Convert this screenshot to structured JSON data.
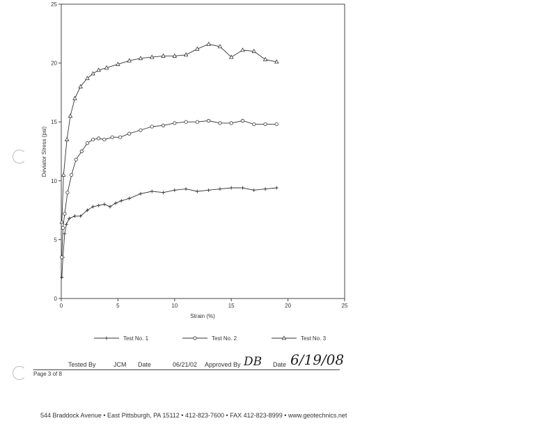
{
  "chart_data": {
    "type": "line",
    "xlabel": "Strain (%)",
    "ylabel": "Deviator Stress (psi)",
    "xlim": [
      0,
      25
    ],
    "ylim": [
      0,
      25
    ],
    "xticks": [
      "0",
      "5",
      "10",
      "15",
      "20",
      "25"
    ],
    "yticks": [
      "0",
      "5",
      "10",
      "15",
      "20",
      "25"
    ],
    "grid": false,
    "legend_position": "bottom",
    "series": [
      {
        "name": "Test No. 1",
        "marker": "plus",
        "points": [
          [
            0.05,
            1.8
          ],
          [
            0.15,
            3.5
          ],
          [
            0.3,
            5.5
          ],
          [
            0.45,
            6.3
          ],
          [
            0.7,
            6.8
          ],
          [
            1.2,
            7.0
          ],
          [
            1.7,
            7.0
          ],
          [
            2.3,
            7.5
          ],
          [
            2.8,
            7.8
          ],
          [
            3.3,
            7.9
          ],
          [
            3.8,
            8.0
          ],
          [
            4.3,
            7.8
          ],
          [
            4.8,
            8.1
          ],
          [
            5.3,
            8.3
          ],
          [
            6,
            8.5
          ],
          [
            7,
            8.9
          ],
          [
            8,
            9.1
          ],
          [
            9,
            9.0
          ],
          [
            10,
            9.2
          ],
          [
            11,
            9.3
          ],
          [
            12,
            9.1
          ],
          [
            13,
            9.2
          ],
          [
            14,
            9.3
          ],
          [
            15,
            9.4
          ],
          [
            16,
            9.4
          ],
          [
            17,
            9.2
          ],
          [
            18,
            9.3
          ],
          [
            19,
            9.4
          ]
        ]
      },
      {
        "name": "Test No. 2",
        "marker": "circle",
        "points": [
          [
            0.05,
            3.5
          ],
          [
            0.15,
            6.0
          ],
          [
            0.3,
            7.2
          ],
          [
            0.55,
            9.0
          ],
          [
            0.9,
            10.5
          ],
          [
            1.3,
            11.8
          ],
          [
            1.8,
            12.5
          ],
          [
            2.3,
            13.2
          ],
          [
            2.8,
            13.5
          ],
          [
            3.3,
            13.6
          ],
          [
            3.8,
            13.5
          ],
          [
            4.5,
            13.7
          ],
          [
            5.2,
            13.7
          ],
          [
            6,
            14.0
          ],
          [
            7,
            14.3
          ],
          [
            8,
            14.6
          ],
          [
            9,
            14.7
          ],
          [
            10,
            14.9
          ],
          [
            11,
            15.0
          ],
          [
            12,
            15.0
          ],
          [
            13,
            15.1
          ],
          [
            14,
            14.9
          ],
          [
            15,
            14.9
          ],
          [
            16,
            15.1
          ],
          [
            17,
            14.8
          ],
          [
            18,
            14.8
          ],
          [
            19,
            14.8
          ]
        ]
      },
      {
        "name": "Test No. 3",
        "marker": "triangle",
        "points": [
          [
            0.05,
            6.5
          ],
          [
            0.2,
            10.5
          ],
          [
            0.5,
            13.5
          ],
          [
            0.8,
            15.5
          ],
          [
            1.2,
            17.0
          ],
          [
            1.7,
            18.0
          ],
          [
            2.3,
            18.7
          ],
          [
            2.8,
            19.1
          ],
          [
            3.3,
            19.4
          ],
          [
            4,
            19.6
          ],
          [
            5,
            19.9
          ],
          [
            6,
            20.2
          ],
          [
            7,
            20.4
          ],
          [
            8,
            20.5
          ],
          [
            9,
            20.6
          ],
          [
            10,
            20.6
          ],
          [
            11,
            20.7
          ],
          [
            12,
            21.2
          ],
          [
            13,
            21.6
          ],
          [
            14,
            21.4
          ],
          [
            15,
            20.5
          ],
          [
            16,
            21.1
          ],
          [
            17,
            21.0
          ],
          [
            18,
            20.3
          ],
          [
            19,
            20.1
          ]
        ]
      }
    ]
  },
  "footer": {
    "tested_by_label": "Tested By",
    "tested_by_value": "JCM",
    "date_label": "Date",
    "date_value": "06/21/02",
    "approved_by_label": "Approved By",
    "approved_by_value": "DB",
    "date2_label": "Date",
    "date2_value": "6/19/08",
    "page_label": "Page 3 of 8",
    "address": "544 Braddock Avenue  •  East Pittsburgh, PA 15112  •  412-823-7600  •  FAX 412-823-8999  •  www.geotechnics.net"
  }
}
